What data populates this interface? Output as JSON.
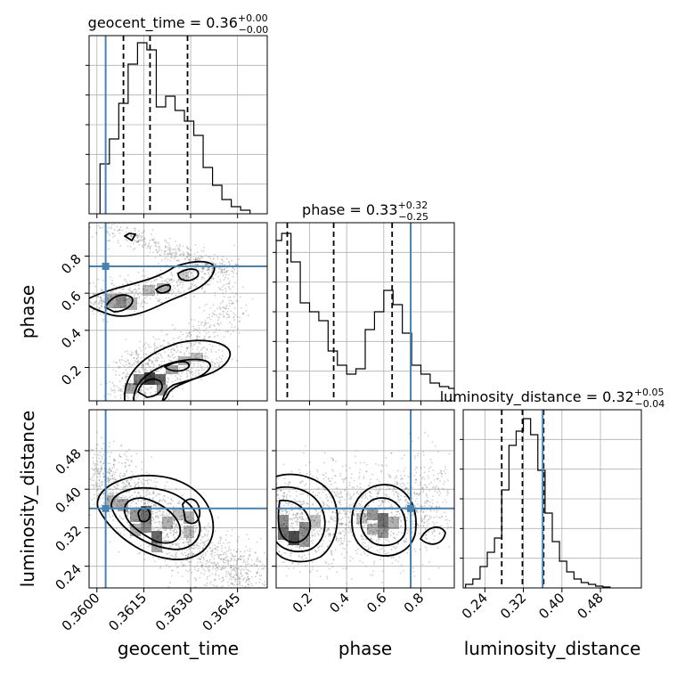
{
  "chart_data": {
    "type": "corner",
    "parameters": [
      "geocent_time",
      "phase",
      "luminosity_distance"
    ],
    "xlabels": {
      "geocent_time": "geocent_time",
      "phase": "phase",
      "luminosity_distance": "luminosity_distance"
    },
    "ylabels": {
      "phase": "phase",
      "luminosity_distance": "luminosity_distance"
    },
    "titles": {
      "geocent_time": {
        "label": "geocent_time = 0.36",
        "plus": "+0.00",
        "minus": "−0.00"
      },
      "phase": {
        "label": "phase = 0.33",
        "plus": "+0.32",
        "minus": "−0.25"
      },
      "luminosity_distance": {
        "label": "luminosity_distance = 0.32",
        "plus": "+0.05",
        "minus": "−0.04"
      }
    },
    "ranges": {
      "geocent_time": [
        0.35975,
        0.36545
      ],
      "phase": [
        0.02,
        0.98
      ],
      "luminosity_distance": [
        0.195,
        0.565
      ]
    },
    "ticks": {
      "geocent_time": [
        "0.3600",
        "0.3615",
        "0.3630",
        "0.3645"
      ],
      "phase": [
        "0.2",
        "0.4",
        "0.6",
        "0.8"
      ],
      "luminosity_distance": [
        "0.24",
        "0.32",
        "0.40",
        "0.48"
      ]
    },
    "truth": {
      "geocent_time": 0.36028,
      "phase": 0.745,
      "luminosity_distance": 0.36
    },
    "quantiles": {
      "geocent_time": [
        0.36085,
        0.3617,
        0.3629
      ],
      "phase": [
        0.08,
        0.33,
        0.645
      ],
      "luminosity_distance": [
        0.275,
        0.318,
        0.362
      ]
    },
    "histograms": {
      "geocent_time": {
        "edges": [
          0.3601,
          0.3604,
          0.3607,
          0.361,
          0.3613,
          0.3616,
          0.3619,
          0.3622,
          0.3625,
          0.3628,
          0.3631,
          0.3634,
          0.3637,
          0.364,
          0.3643,
          0.3646,
          0.3649
        ],
        "counts": [
          0.28,
          0.42,
          0.62,
          0.84,
          0.96,
          0.92,
          0.6,
          0.66,
          0.58,
          0.52,
          0.44,
          0.26,
          0.16,
          0.08,
          0.04,
          0.02
        ]
      },
      "phase": {
        "edges": [
          0.02,
          0.05,
          0.1,
          0.15,
          0.2,
          0.25,
          0.3,
          0.35,
          0.4,
          0.45,
          0.5,
          0.55,
          0.6,
          0.65,
          0.7,
          0.75,
          0.8,
          0.85,
          0.9,
          0.95,
          0.98
        ],
        "counts": [
          0.9,
          0.94,
          0.78,
          0.55,
          0.5,
          0.45,
          0.28,
          0.2,
          0.15,
          0.18,
          0.4,
          0.5,
          0.62,
          0.54,
          0.38,
          0.2,
          0.15,
          0.1,
          0.08,
          0.07
        ]
      },
      "luminosity_distance": {
        "edges": [
          0.2,
          0.215,
          0.23,
          0.245,
          0.26,
          0.275,
          0.29,
          0.305,
          0.32,
          0.335,
          0.35,
          0.365,
          0.38,
          0.395,
          0.41,
          0.425,
          0.44,
          0.455,
          0.47,
          0.485,
          0.5
        ],
        "counts": [
          0.02,
          0.05,
          0.12,
          0.2,
          0.28,
          0.55,
          0.8,
          0.88,
          0.95,
          0.86,
          0.66,
          0.42,
          0.26,
          0.15,
          0.09,
          0.05,
          0.03,
          0.02,
          0.01,
          0.005
        ]
      }
    },
    "grid": true
  }
}
